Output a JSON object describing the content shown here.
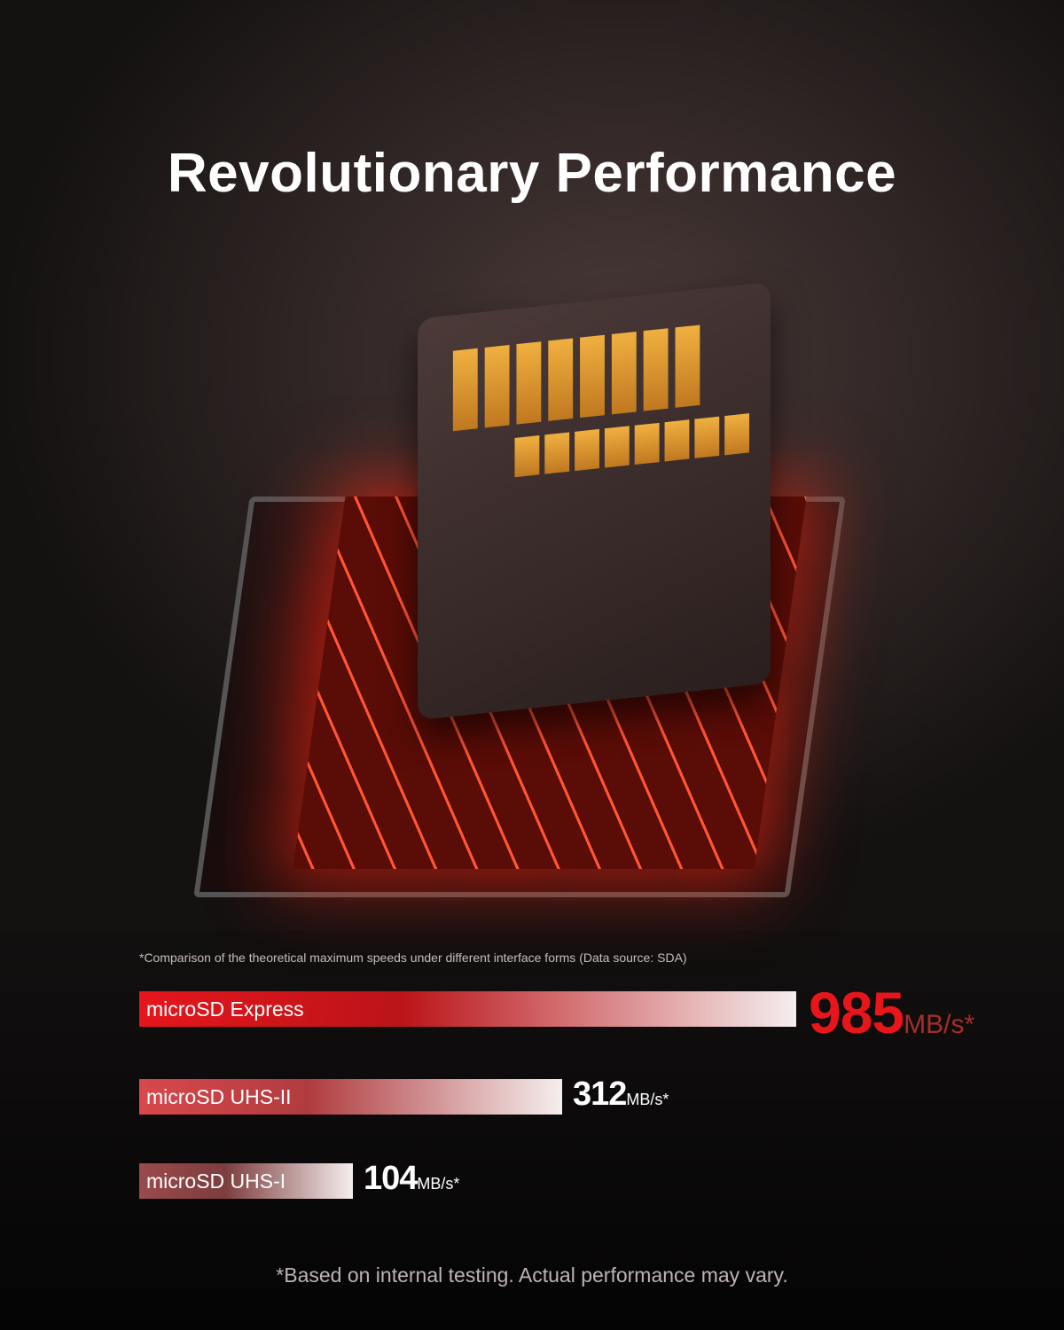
{
  "title": "Revolutionary Performance",
  "chart_data": {
    "type": "bar",
    "orientation": "horizontal",
    "note": "*Comparison of the theoretical maximum speeds under different interface forms (Data source: SDA)",
    "categories": [
      "microSD Express",
      "microSD UHS-II",
      "microSD UHS-I"
    ],
    "values": [
      985,
      312,
      104
    ],
    "unit": "MB/s*",
    "colors": [
      "#e5161c",
      "#d9484c",
      "#9a4a4c"
    ]
  },
  "disclaimer": "*Based on internal testing. Actual performance may vary."
}
